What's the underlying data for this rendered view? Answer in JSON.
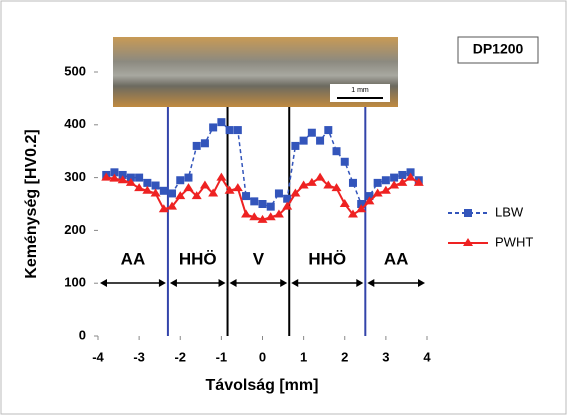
{
  "chart_data": {
    "type": "line",
    "label_box": "DP1200",
    "scale_bar": "1 mm",
    "xlabel": "Távolság [mm]",
    "ylabel": "Keménység [HV0.2]",
    "x": [
      -3.8,
      -3.6,
      -3.4,
      -3.2,
      -3.0,
      -2.8,
      -2.6,
      -2.4,
      -2.2,
      -2.0,
      -1.8,
      -1.6,
      -1.4,
      -1.2,
      -1.0,
      -0.8,
      -0.6,
      -0.4,
      -0.2,
      0.0,
      0.2,
      0.4,
      0.6,
      0.8,
      1.0,
      1.2,
      1.4,
      1.6,
      1.8,
      2.0,
      2.2,
      2.4,
      2.6,
      2.8,
      3.0,
      3.2,
      3.4,
      3.6,
      3.8
    ],
    "series": [
      {
        "name": "LBW",
        "color": "#3355bb",
        "dashed": true,
        "marker": "square",
        "values": [
          305,
          310,
          305,
          300,
          300,
          290,
          285,
          275,
          270,
          295,
          300,
          360,
          365,
          395,
          405,
          390,
          390,
          265,
          255,
          250,
          245,
          270,
          260,
          360,
          370,
          385,
          370,
          390,
          350,
          330,
          290,
          250,
          265,
          290,
          295,
          300,
          305,
          310,
          295
        ]
      },
      {
        "name": "PWHT",
        "color": "#ee2222",
        "dashed": false,
        "marker": "triangle",
        "values": [
          300,
          298,
          295,
          290,
          280,
          275,
          270,
          240,
          245,
          265,
          280,
          265,
          285,
          270,
          300,
          275,
          280,
          230,
          225,
          220,
          225,
          230,
          245,
          270,
          285,
          290,
          300,
          285,
          280,
          250,
          230,
          240,
          255,
          270,
          275,
          285,
          290,
          300,
          290
        ]
      }
    ],
    "vlines": [
      {
        "x": -2.3,
        "color": "#3344aa"
      },
      {
        "x": -0.85,
        "color": "#000000"
      },
      {
        "x": 0.65,
        "color": "#000000"
      },
      {
        "x": 2.5,
        "color": "#3344aa"
      }
    ],
    "zones": [
      "AA",
      "HHÖ",
      "V",
      "HHÖ",
      "AA"
    ],
    "xlim": [
      -4,
      4
    ],
    "xticks": [
      -4,
      -3,
      -2,
      -1,
      0,
      1,
      2,
      3,
      4
    ],
    "ylim": [
      0,
      500
    ],
    "yticks": [
      0,
      100,
      200,
      300,
      400,
      500
    ]
  }
}
